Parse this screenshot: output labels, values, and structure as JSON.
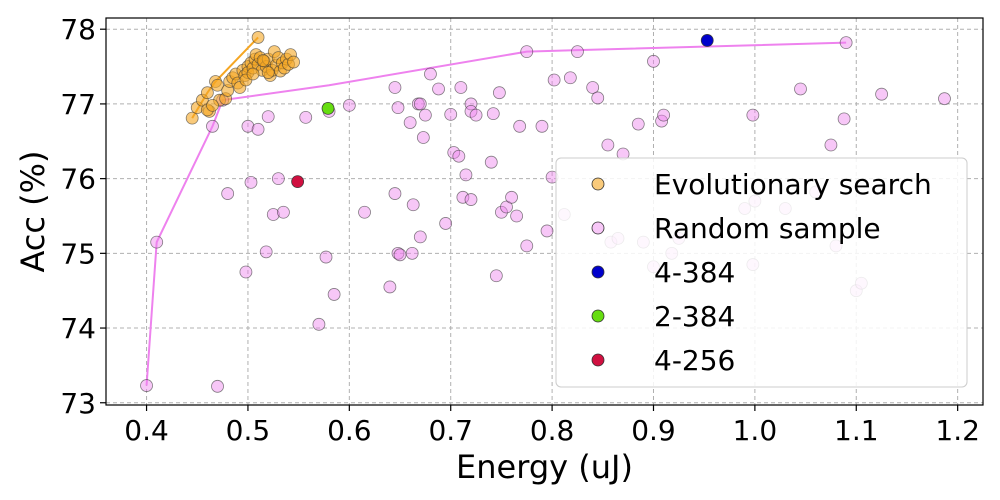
{
  "chart_data": {
    "type": "scatter",
    "title": "",
    "xlabel": "Energy (uJ)",
    "ylabel": "Acc (%)",
    "xlim": [
      0.36,
      1.225
    ],
    "ylim": [
      72.97,
      78.15
    ],
    "xticks": [
      0.4,
      0.5,
      0.6,
      0.7,
      0.8,
      0.9,
      1.0,
      1.1,
      1.2
    ],
    "xtick_labels": [
      "0.4",
      "0.5",
      "0.6",
      "0.7",
      "0.8",
      "0.9",
      "1.0",
      "1.1",
      "1.2"
    ],
    "yticks": [
      73,
      74,
      75,
      76,
      77,
      78
    ],
    "ytick_labels": [
      "73",
      "74",
      "75",
      "76",
      "77",
      "78"
    ],
    "grid": true,
    "legend_position": "center-right",
    "series": [
      {
        "name": "Evolutionary search",
        "color": "#f5a623",
        "marker": "circle",
        "points": [
          [
            0.445,
            76.81
          ],
          [
            0.45,
            76.95
          ],
          [
            0.455,
            77.05
          ],
          [
            0.46,
            77.15
          ],
          [
            0.462,
            76.9
          ],
          [
            0.468,
            77.3
          ],
          [
            0.47,
            77.25
          ],
          [
            0.472,
            77.05
          ],
          [
            0.478,
            77.07
          ],
          [
            0.48,
            77.18
          ],
          [
            0.482,
            77.3
          ],
          [
            0.485,
            77.35
          ],
          [
            0.488,
            77.4
          ],
          [
            0.49,
            77.28
          ],
          [
            0.492,
            77.22
          ],
          [
            0.495,
            77.45
          ],
          [
            0.497,
            77.38
          ],
          [
            0.5,
            77.5
          ],
          [
            0.5,
            77.42
          ],
          [
            0.503,
            77.55
          ],
          [
            0.505,
            77.48
          ],
          [
            0.507,
            77.6
          ],
          [
            0.508,
            77.66
          ],
          [
            0.51,
            77.53
          ],
          [
            0.51,
            77.89
          ],
          [
            0.512,
            77.62
          ],
          [
            0.514,
            77.45
          ],
          [
            0.516,
            77.57
          ],
          [
            0.518,
            77.5
          ],
          [
            0.52,
            77.6
          ],
          [
            0.522,
            77.38
          ],
          [
            0.524,
            77.45
          ],
          [
            0.526,
            77.7
          ],
          [
            0.528,
            77.52
          ],
          [
            0.53,
            77.62
          ],
          [
            0.532,
            77.44
          ],
          [
            0.534,
            77.55
          ],
          [
            0.536,
            77.48
          ],
          [
            0.538,
            77.6
          ],
          [
            0.54,
            77.53
          ],
          [
            0.542,
            77.66
          ],
          [
            0.545,
            77.56
          ],
          [
            0.46,
            76.92
          ],
          [
            0.465,
            76.98
          ],
          [
            0.498,
            77.32
          ],
          [
            0.505,
            77.4
          ],
          [
            0.515,
            77.58
          ],
          [
            0.52,
            77.42
          ]
        ],
        "pareto_line": [
          [
            0.445,
            76.81
          ],
          [
            0.46,
            77.15
          ],
          [
            0.468,
            77.3
          ],
          [
            0.51,
            77.89
          ]
        ]
      },
      {
        "name": "Random sample",
        "color": "#ee82ee",
        "marker": "circle",
        "points": [
          [
            0.4,
            73.23
          ],
          [
            0.41,
            75.15
          ],
          [
            0.465,
            76.7
          ],
          [
            0.475,
            77.05
          ],
          [
            0.47,
            73.22
          ],
          [
            0.48,
            75.8
          ],
          [
            0.498,
            74.75
          ],
          [
            0.5,
            76.7
          ],
          [
            0.503,
            75.95
          ],
          [
            0.51,
            76.66
          ],
          [
            0.518,
            75.02
          ],
          [
            0.52,
            76.83
          ],
          [
            0.525,
            75.52
          ],
          [
            0.53,
            76.0
          ],
          [
            0.535,
            75.55
          ],
          [
            0.557,
            76.82
          ],
          [
            0.57,
            74.05
          ],
          [
            0.577,
            74.95
          ],
          [
            0.58,
            76.9
          ],
          [
            0.585,
            74.45
          ],
          [
            0.6,
            76.98
          ],
          [
            0.615,
            75.55
          ],
          [
            0.645,
            77.22
          ],
          [
            0.645,
            75.8
          ],
          [
            0.648,
            76.95
          ],
          [
            0.648,
            75.0
          ],
          [
            0.65,
            74.98
          ],
          [
            0.64,
            74.55
          ],
          [
            0.66,
            76.75
          ],
          [
            0.662,
            75.0
          ],
          [
            0.663,
            75.65
          ],
          [
            0.668,
            77.0
          ],
          [
            0.67,
            77.0
          ],
          [
            0.675,
            76.85
          ],
          [
            0.67,
            75.22
          ],
          [
            0.673,
            76.55
          ],
          [
            0.68,
            77.4
          ],
          [
            0.688,
            77.2
          ],
          [
            0.695,
            75.4
          ],
          [
            0.7,
            76.86
          ],
          [
            0.703,
            76.35
          ],
          [
            0.708,
            76.3
          ],
          [
            0.71,
            77.22
          ],
          [
            0.712,
            75.75
          ],
          [
            0.715,
            76.05
          ],
          [
            0.72,
            75.72
          ],
          [
            0.72,
            77.0
          ],
          [
            0.72,
            76.9
          ],
          [
            0.725,
            76.85
          ],
          [
            0.74,
            76.22
          ],
          [
            0.742,
            76.87
          ],
          [
            0.745,
            74.7
          ],
          [
            0.748,
            77.15
          ],
          [
            0.75,
            75.55
          ],
          [
            0.755,
            75.62
          ],
          [
            0.76,
            75.75
          ],
          [
            0.765,
            75.5
          ],
          [
            0.768,
            76.7
          ],
          [
            0.775,
            75.1
          ],
          [
            0.775,
            77.7
          ],
          [
            0.79,
            76.7
          ],
          [
            0.795,
            75.3
          ],
          [
            0.8,
            76.02
          ],
          [
            0.802,
            77.32
          ],
          [
            0.812,
            75.52
          ],
          [
            0.818,
            77.35
          ],
          [
            0.825,
            77.7
          ],
          [
            0.84,
            77.22
          ],
          [
            0.845,
            77.08
          ],
          [
            0.855,
            76.45
          ],
          [
            0.858,
            75.15
          ],
          [
            0.865,
            75.2
          ],
          [
            0.87,
            76.33
          ],
          [
            0.885,
            76.73
          ],
          [
            0.89,
            75.15
          ],
          [
            0.9,
            77.57
          ],
          [
            0.9,
            74.82
          ],
          [
            0.908,
            76.77
          ],
          [
            0.91,
            76.85
          ],
          [
            0.918,
            75.0
          ],
          [
            0.925,
            75.2
          ],
          [
            0.99,
            75.6
          ],
          [
            0.998,
            76.85
          ],
          [
            0.998,
            74.85
          ],
          [
            1.0,
            75.7
          ],
          [
            1.03,
            75.6
          ],
          [
            1.045,
            77.2
          ],
          [
            1.06,
            75.82
          ],
          [
            1.075,
            76.45
          ],
          [
            1.08,
            75.1
          ],
          [
            1.088,
            76.8
          ],
          [
            1.09,
            77.82
          ],
          [
            1.1,
            74.5
          ],
          [
            1.105,
            74.6
          ],
          [
            1.125,
            77.13
          ],
          [
            1.187,
            77.07
          ]
        ],
        "pareto_line": [
          [
            0.4,
            73.23
          ],
          [
            0.41,
            75.15
          ],
          [
            0.465,
            76.7
          ],
          [
            0.475,
            77.05
          ],
          [
            0.58,
            77.25
          ],
          [
            0.775,
            77.7
          ],
          [
            0.825,
            77.72
          ],
          [
            1.09,
            77.82
          ]
        ]
      },
      {
        "name": "4-384",
        "color": "#0000cc",
        "marker": "circle",
        "points": [
          [
            0.953,
            77.85
          ]
        ]
      },
      {
        "name": "2-384",
        "color": "#66dd11",
        "marker": "circle",
        "points": [
          [
            0.579,
            76.94
          ]
        ]
      },
      {
        "name": "4-256",
        "color": "#d01040",
        "marker": "circle",
        "points": [
          [
            0.549,
            75.96
          ]
        ]
      }
    ]
  }
}
